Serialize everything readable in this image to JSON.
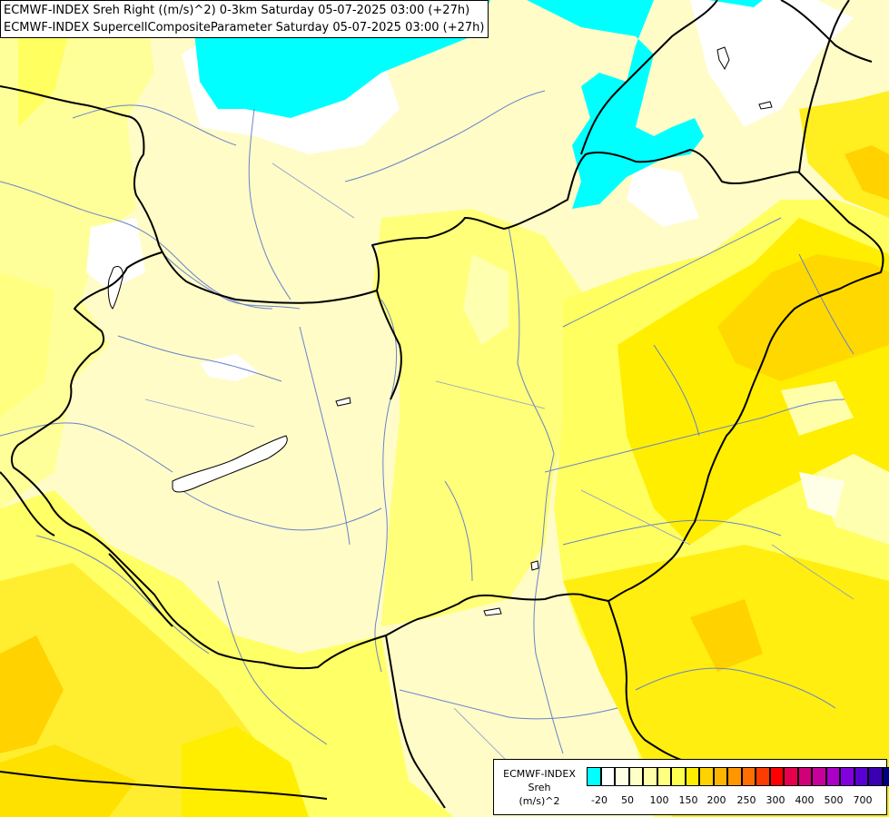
{
  "header": {
    "line1": "ECMWF-INDEX Sreh Right ((m/s)^2) 0-3km Saturday 05-07-2025 03:00 (+27h)",
    "line2": "ECMWF-INDEX SupercellCompositeParameter Saturday 05-07-2025 03:00 (+27h)"
  },
  "legend": {
    "title_line1": "ECMWF-INDEX",
    "title_line2": "Sreh",
    "title_line3": "(m/s)^2",
    "colors": [
      "#00ffff",
      "#ffffff",
      "#ffffe6",
      "#ffffc8",
      "#ffffaa",
      "#ffff82",
      "#ffff50",
      "#ffee00",
      "#ffd200",
      "#ffb400",
      "#ff9600",
      "#ff6e00",
      "#ff3c00",
      "#ff0000",
      "#e6004b",
      "#d20078",
      "#c8009b",
      "#aa00c8",
      "#8200dc",
      "#5a00d2",
      "#3c00b4",
      "#000082"
    ],
    "ticks": [
      "-20",
      "50",
      "100",
      "150",
      "200",
      "250",
      "300",
      "400",
      "500",
      "700"
    ]
  }
}
